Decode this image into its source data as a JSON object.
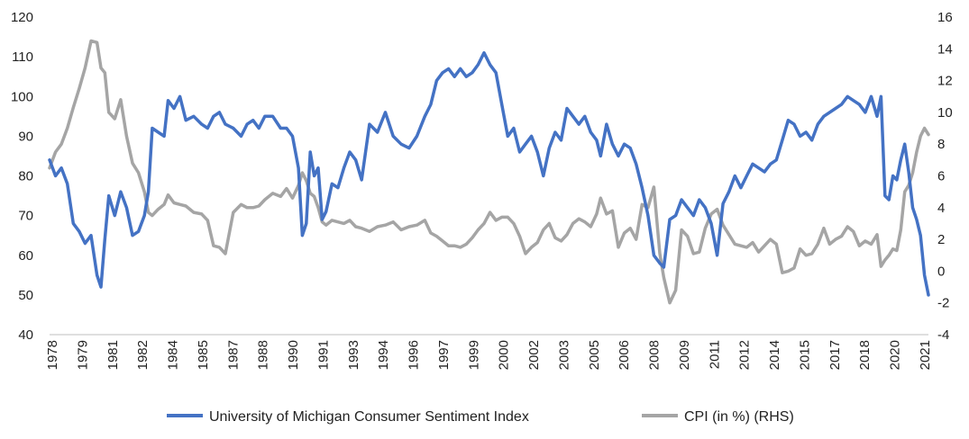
{
  "chart_data": {
    "type": "line",
    "title": "",
    "xlabel": "",
    "ylabel": "",
    "y_left_lim": [
      40,
      120
    ],
    "y_right_lim": [
      -4,
      16
    ],
    "y_left_ticks": [
      "40",
      "50",
      "60",
      "70",
      "80",
      "90",
      "100",
      "110",
      "120"
    ],
    "y_right_ticks": [
      "-4",
      "-2",
      "0",
      "2",
      "4",
      "6",
      "8",
      "10",
      "12",
      "14",
      "16"
    ],
    "x_ticks": [
      "1978",
      "1979",
      "1981",
      "1982",
      "1984",
      "1985",
      "1987",
      "1988",
      "1990",
      "1991",
      "1993",
      "1994",
      "1996",
      "1997",
      "1999",
      "2000",
      "2002",
      "2003",
      "2005",
      "2006",
      "2008",
      "2009",
      "2011",
      "2012",
      "2014",
      "2015",
      "2017",
      "2018",
      "2020",
      "2021"
    ],
    "x_range": [
      1978.0,
      2022.5
    ],
    "legend_position": "bottom",
    "grid": false,
    "series": [
      {
        "name": "University of Michigan Consumer Sentiment Index",
        "axis": "left",
        "color": "#4472C4",
        "x": [
          1978.0,
          1978.3,
          1978.6,
          1978.9,
          1979.2,
          1979.5,
          1979.8,
          1980.1,
          1980.4,
          1980.6,
          1980.8,
          1981.0,
          1981.3,
          1981.6,
          1981.9,
          1982.2,
          1982.5,
          1982.8,
          1983.0,
          1983.2,
          1983.5,
          1983.8,
          1984.0,
          1984.3,
          1984.6,
          1984.9,
          1985.3,
          1985.7,
          1986.0,
          1986.3,
          1986.6,
          1986.9,
          1987.3,
          1987.7,
          1988.0,
          1988.3,
          1988.6,
          1988.9,
          1989.3,
          1989.7,
          1990.0,
          1990.3,
          1990.6,
          1990.8,
          1991.0,
          1991.2,
          1991.4,
          1991.6,
          1991.8,
          1992.0,
          1992.3,
          1992.6,
          1992.9,
          1993.2,
          1993.5,
          1993.8,
          1994.2,
          1994.6,
          1995.0,
          1995.4,
          1995.8,
          1996.2,
          1996.6,
          1997.0,
          1997.3,
          1997.6,
          1997.9,
          1998.2,
          1998.5,
          1998.8,
          1999.1,
          1999.4,
          1999.7,
          2000.0,
          2000.3,
          2000.6,
          2000.9,
          2001.2,
          2001.5,
          2001.8,
          2002.1,
          2002.4,
          2002.7,
          2003.0,
          2003.3,
          2003.6,
          2003.9,
          2004.2,
          2004.5,
          2004.8,
          2005.1,
          2005.4,
          2005.7,
          2005.9,
          2006.2,
          2006.5,
          2006.8,
          2007.1,
          2007.4,
          2007.7,
          2008.0,
          2008.3,
          2008.6,
          2008.9,
          2009.1,
          2009.4,
          2009.7,
          2010.0,
          2010.3,
          2010.6,
          2010.9,
          2011.2,
          2011.5,
          2011.8,
          2012.1,
          2012.4,
          2012.7,
          2013.0,
          2013.3,
          2013.6,
          2013.9,
          2014.2,
          2014.5,
          2014.8,
          2015.1,
          2015.4,
          2015.7,
          2016.0,
          2016.3,
          2016.6,
          2016.9,
          2017.2,
          2017.5,
          2017.8,
          2018.1,
          2018.4,
          2018.7,
          2019.0,
          2019.3,
          2019.6,
          2019.9,
          2020.1,
          2020.3,
          2020.5,
          2020.7,
          2020.9,
          2021.1,
          2021.3,
          2021.5,
          2021.7,
          2021.9,
          2022.1,
          2022.3,
          2022.5
        ],
        "values": [
          84,
          80,
          82,
          78,
          68,
          66,
          63,
          65,
          55,
          52,
          64,
          75,
          70,
          76,
          72,
          65,
          66,
          70,
          76,
          92,
          91,
          90,
          99,
          97,
          100,
          94,
          95,
          93,
          92,
          95,
          96,
          93,
          92,
          90,
          93,
          94,
          92,
          95,
          95,
          92,
          92,
          90,
          82,
          65,
          68,
          86,
          80,
          82,
          69,
          71,
          78,
          77,
          82,
          86,
          84,
          79,
          93,
          91,
          96,
          90,
          88,
          87,
          90,
          95,
          98,
          104,
          106,
          107,
          105,
          107,
          105,
          106,
          108,
          111,
          108,
          106,
          98,
          90,
          92,
          86,
          88,
          90,
          86,
          80,
          87,
          91,
          89,
          97,
          95,
          93,
          95,
          91,
          89,
          85,
          93,
          88,
          85,
          88,
          87,
          83,
          77,
          70,
          60,
          58,
          57,
          69,
          70,
          74,
          72,
          70,
          74,
          72,
          68,
          60,
          73,
          76,
          80,
          77,
          80,
          83,
          82,
          81,
          83,
          84,
          89,
          94,
          93,
          90,
          91,
          89,
          93,
          95,
          96,
          97,
          98,
          100,
          99,
          98,
          96,
          100,
          95,
          100,
          75,
          74,
          80,
          79,
          84,
          88,
          81,
          72,
          69,
          65,
          55,
          50
        ]
      },
      {
        "name": "CPI (in %) (RHS)",
        "axis": "right",
        "color": "#A5A5A5",
        "x": [
          1978.0,
          1978.3,
          1978.6,
          1978.9,
          1979.2,
          1979.5,
          1979.8,
          1980.1,
          1980.4,
          1980.6,
          1980.8,
          1981.0,
          1981.3,
          1981.6,
          1981.9,
          1982.2,
          1982.5,
          1982.8,
          1983.0,
          1983.2,
          1983.5,
          1983.8,
          1984.0,
          1984.3,
          1984.6,
          1984.9,
          1985.3,
          1985.7,
          1986.0,
          1986.3,
          1986.6,
          1986.9,
          1987.3,
          1987.7,
          1988.0,
          1988.3,
          1988.6,
          1988.9,
          1989.3,
          1989.7,
          1990.0,
          1990.3,
          1990.6,
          1990.8,
          1991.0,
          1991.2,
          1991.4,
          1991.6,
          1991.8,
          1992.0,
          1992.3,
          1992.6,
          1992.9,
          1993.2,
          1993.5,
          1993.8,
          1994.2,
          1994.6,
          1995.0,
          1995.4,
          1995.8,
          1996.2,
          1996.6,
          1997.0,
          1997.3,
          1997.6,
          1997.9,
          1998.2,
          1998.5,
          1998.8,
          1999.1,
          1999.4,
          1999.7,
          2000.0,
          2000.3,
          2000.6,
          2000.9,
          2001.2,
          2001.5,
          2001.8,
          2002.1,
          2002.4,
          2002.7,
          2003.0,
          2003.3,
          2003.6,
          2003.9,
          2004.2,
          2004.5,
          2004.8,
          2005.1,
          2005.4,
          2005.7,
          2005.9,
          2006.2,
          2006.5,
          2006.8,
          2007.1,
          2007.4,
          2007.7,
          2008.0,
          2008.3,
          2008.6,
          2008.9,
          2009.1,
          2009.4,
          2009.7,
          2010.0,
          2010.3,
          2010.6,
          2010.9,
          2011.2,
          2011.5,
          2011.8,
          2012.1,
          2012.4,
          2012.7,
          2013.0,
          2013.3,
          2013.6,
          2013.9,
          2014.2,
          2014.5,
          2014.8,
          2015.1,
          2015.4,
          2015.7,
          2016.0,
          2016.3,
          2016.6,
          2016.9,
          2017.2,
          2017.5,
          2017.8,
          2018.1,
          2018.4,
          2018.7,
          2019.0,
          2019.3,
          2019.6,
          2019.9,
          2020.1,
          2020.3,
          2020.5,
          2020.7,
          2020.9,
          2021.1,
          2021.3,
          2021.5,
          2021.7,
          2021.9,
          2022.1,
          2022.3,
          2022.5
        ],
        "values": [
          6.5,
          7.5,
          8.0,
          9.0,
          10.3,
          11.5,
          12.8,
          14.5,
          14.4,
          12.8,
          12.5,
          10.0,
          9.6,
          10.8,
          8.5,
          6.8,
          6.2,
          5.0,
          3.7,
          3.5,
          3.9,
          4.2,
          4.8,
          4.3,
          4.2,
          4.1,
          3.7,
          3.6,
          3.2,
          1.6,
          1.5,
          1.1,
          3.7,
          4.2,
          4.0,
          4.0,
          4.1,
          4.5,
          4.9,
          4.7,
          5.2,
          4.6,
          5.4,
          6.2,
          5.7,
          4.9,
          4.7,
          4.0,
          3.1,
          2.9,
          3.2,
          3.1,
          3.0,
          3.2,
          2.8,
          2.7,
          2.5,
          2.8,
          2.9,
          3.1,
          2.6,
          2.8,
          2.9,
          3.2,
          2.4,
          2.2,
          1.9,
          1.6,
          1.6,
          1.5,
          1.7,
          2.1,
          2.6,
          3.0,
          3.7,
          3.2,
          3.4,
          3.4,
          3.0,
          2.2,
          1.1,
          1.5,
          1.8,
          2.6,
          3.0,
          2.1,
          1.9,
          2.3,
          3.0,
          3.3,
          3.1,
          2.8,
          3.6,
          4.6,
          3.6,
          3.8,
          1.5,
          2.4,
          2.7,
          2.0,
          4.2,
          4.0,
          5.3,
          1.1,
          -0.4,
          -2.0,
          -1.2,
          2.6,
          2.2,
          1.1,
          1.2,
          2.7,
          3.6,
          3.9,
          2.9,
          2.3,
          1.7,
          1.6,
          1.5,
          1.8,
          1.2,
          1.6,
          2.0,
          1.7,
          -0.1,
          0.0,
          0.2,
          1.4,
          1.0,
          1.1,
          1.7,
          2.7,
          1.7,
          2.0,
          2.2,
          2.8,
          2.5,
          1.6,
          1.9,
          1.7,
          2.3,
          0.3,
          0.7,
          1.0,
          1.4,
          1.3,
          2.6,
          5.0,
          5.4,
          6.2,
          7.5,
          8.5,
          9.0,
          8.6
        ]
      }
    ]
  }
}
